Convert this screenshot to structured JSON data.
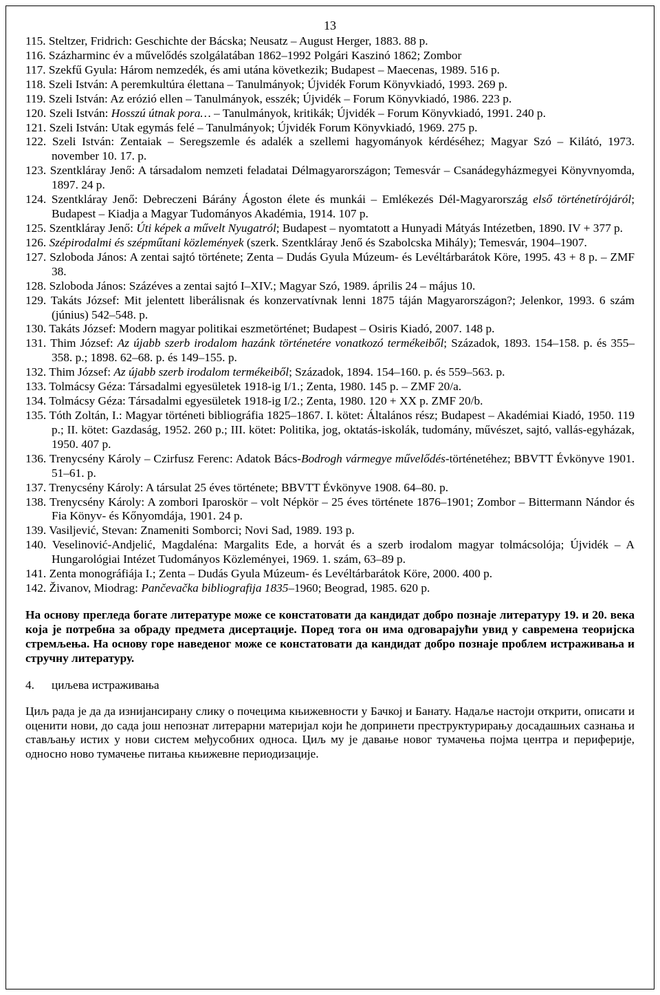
{
  "page_number": "13",
  "references": [
    {
      "n": "115.",
      "html": "Steltzer, Fridrich: Geschichte der Bácska; Neusatz – August Herger, 1883. 88 p."
    },
    {
      "n": "116.",
      "html": "Százharminc év a művelődés szolgálatában 1862–1992 Polgári Kaszinó 1862; Zombor"
    },
    {
      "n": "117.",
      "html": "Szekfű Gyula: Három nemzedék, és ami utána következik; Budapest – Maecenas, 1989. 516 p."
    },
    {
      "n": "118.",
      "html": "Szeli István: A peremkultúra élettana – Tanulmányok; Újvidék Forum Könyvkiadó, 1993. 269 p."
    },
    {
      "n": "119.",
      "html": "Szeli István: Az erózió ellen – Tanulmányok, esszék; Újvidék – Forum Könyvkiadó, 1986. 223 p."
    },
    {
      "n": "120.",
      "html": "Szeli István: <span class=\"ital\">Hosszú útnak pora…</span> – Tanulmányok, kritikák; Újvidék – Forum Könyvkiadó, 1991. 240 p."
    },
    {
      "n": "121.",
      "html": "Szeli István: Utak egymás felé – Tanulmányok; Újvidék Forum Könyvkiadó, 1969. 275 p."
    },
    {
      "n": "122.",
      "html": "Szeli István: Zentaiak – Seregszemle és adalék a szellemi hagyományok kérdéséhez; Magyar Szó – Kilátó, 1973. november 10. 17. p."
    },
    {
      "n": "123.",
      "html": "Szentkláray Jenő: A társadalom nemzeti feladatai Délmagyarországon; Temesvár – Csanád­egyházmegyei Könyvnyomda, 1897. 24 p."
    },
    {
      "n": "124.",
      "html": "Szentkláray Jenő: Debreczeni Bárány Ágoston élete és munkái – Emlékezés Dél-Magyarország <span class=\"ital\">első történetírójáról</span>; Budapest – Kiadja a Magyar Tudományos Akadémia, 1914. 107 p."
    },
    {
      "n": "125.",
      "html": "Szentkláray Jenő: <span class=\"ital\">Úti képek a művelt Nyugatról</span>; Budapest – nyomtatott a Hunyadi Mátyás Intézetben, 1890. IV + 377 p."
    },
    {
      "n": "126.",
      "html": "<span class=\"ital\">Szépirodalmi és szépműtani közlemények</span> (szerk. Szentkláray Jenő és Szabolcska Mihály); Temesvár, 1904–1907."
    },
    {
      "n": "127.",
      "html": "Szloboda János: A zentai sajtó története; Zenta – Dudás Gyula Múzeum- és Levéltárbarátok Köre, 1995. 43 + 8 p. – ZMF 38."
    },
    {
      "n": "128.",
      "html": "Szloboda János: Százéves a zentai sajtó I–XIV.; Magyar Szó, 1989. április 24 – május 10."
    },
    {
      "n": "129.",
      "html": "Takáts József: Mit jelentett liberálisnak és konzervatívnak lenni 1875 táján Magyarországon?; Jelenkor, 1993. 6 szám (június) 542–548. p."
    },
    {
      "n": "130.",
      "html": "Takáts József: Modern magyar politikai eszmetörténet; Budapest – Osiris Kiadó, 2007. 148 p."
    },
    {
      "n": "131.",
      "html": "Thim József: <span class=\"ital\">Az újabb szerb irodalom hazánk történetére vonatkozó termékeiből</span>; Századok, 1893. 154–158. p. és 355–358. p.; 1898. 62–68. p. és 149–155. p."
    },
    {
      "n": "132.",
      "html": "Thim József: <span class=\"ital\">Az újabb szerb irodalom termékeiből</span>; Századok, 1894. 154–160. p. és 559–563. p."
    },
    {
      "n": "133.",
      "html": "Tolmácsy Géza: Társadalmi egyesületek 1918-ig I/1.; Zenta, 1980. 145 p. – ZMF 20/a."
    },
    {
      "n": "134.",
      "html": "Tolmácsy Géza: Társadalmi egyesületek 1918-ig I/2.; Zenta, 1980. 120 + XX p. ZMF 20/b."
    },
    {
      "n": "135.",
      "html": "Tóth Zoltán, I.: Magyar történeti bibliográfia 1825–1867. I. kötet: Általános rész; Budapest – Akadémiai Kiadó, 1950. 119 p.; II. kötet: Gazdaság, 1952. 260 p.; III. kötet: Politika, jog, oktatás-iskolák, tudomány, művészet, sajtó, vallás-egyházak, 1950. 407 p."
    },
    {
      "n": "136.",
      "html": "Trenycsény Károly – Czirfusz Ferenc: Adatok Bács-<span class=\"ital\">Bodrogh vármegye művelődés</span>-történetéhez; BBVTT Évkönyve 1901. 51–61. p."
    },
    {
      "n": "137.",
      "html": "Trenycsény Károly: A társulat 25 éves története; BBVTT Évkönyve 1908. 64–80. p."
    },
    {
      "n": "138.",
      "html": "Trenycsény Károly: A zombori Iparoskör – volt Népkör – 25 éves története 1876–1901; Zombor – Bittermann Nándor és Fia Könyv- és Kőnyomdája, 1901. 24 p."
    },
    {
      "n": "139.",
      "html": "Vasiljević, Stevan: Znameniti Somborci; Novi Sad, 1989. 193 p."
    },
    {
      "n": "140.",
      "html": "Veselinović-Andjelić, Magdaléna: Margalits Ede, a horvát és a szerb irodalom magyar tolmácsolója; Újvidék – A Hungarológiai Intézet Tudományos Közleményei, 1969. 1. szám, 63–89 p."
    },
    {
      "n": "141.",
      "html": "Zenta monográfiája I.; Zenta – Dudás Gyula Múzeum- és Levéltárbarátok Köre, 2000. 400 p."
    },
    {
      "n": "142.",
      "html": "Živanov, Miodrag: <span class=\"ital\">Pančevačka bibliografija 1835</span>–1960; Beograd, 1985. 620 p."
    }
  ],
  "summary_bold": "На основу прегледа богате литературе може се констатовати да кандидат добро познаје литературу 19. и 20. века која је потребна за обраду предмета дисертације. Поред тога он има одговарајући увид у савремена теоријска стремљења. На основу горе наведеног може се констатовати да кандидат добро познаје проблем истраживања и стручну литературу.",
  "section": {
    "num": "4.",
    "title": "циљева истраживања"
  },
  "body_para": "Циљ рада је да да изнијансирану слику о почецима књижевности у Бачкој и Банату. Надаље настоји открити, описати и оценити нови, до сада још непознат литерарни материјал који ће допринети преструктурирању досадашњих сазнања и стављању истих у нови систем међусобних односа. Циљ му је давање новог тумачења појма центра и периферије, односно ново тумачење питања књижевне периодизације."
}
